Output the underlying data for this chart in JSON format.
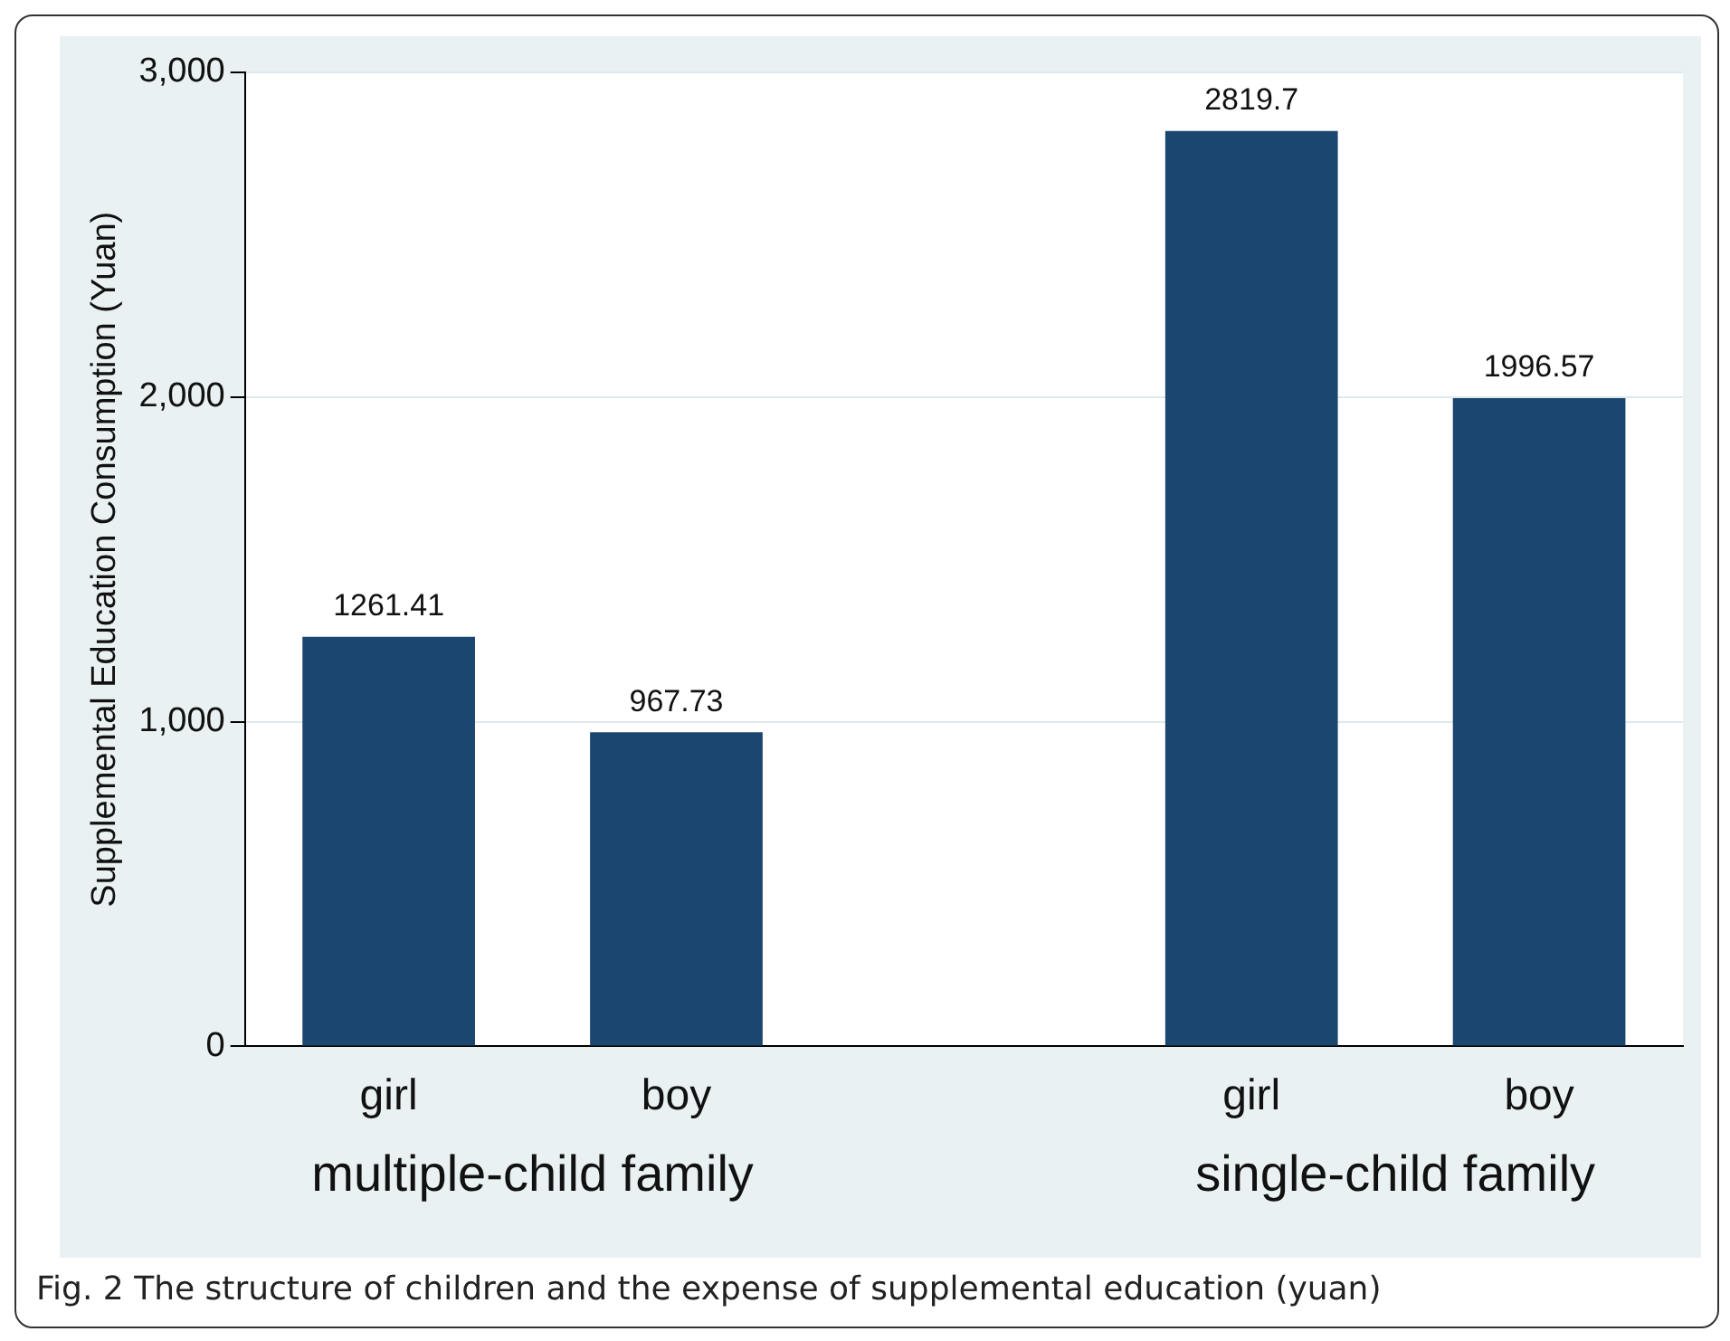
{
  "chart_data": {
    "type": "bar",
    "ylabel": "Supplemental Education Consumption (Yuan)",
    "categories": [
      "girl",
      "boy",
      null,
      "girl",
      "boy"
    ],
    "values": [
      1261.41,
      967.73,
      null,
      2819.7,
      1996.57
    ],
    "color": "#1a4670",
    "ylim": [
      0,
      3000
    ],
    "yticks": [
      0,
      {
        "value": 1000,
        "label": "1,000"
      },
      {
        "value": 2000,
        "label": "2,000"
      },
      {
        "value": 3000,
        "label": "3,000"
      }
    ],
    "grid": "y",
    "data_labels": true,
    "annotations": [
      "multiple-child family",
      "single-child family",
      "Fig. 2 The structure of children and the expense of supplemental education (yuan)"
    ]
  }
}
